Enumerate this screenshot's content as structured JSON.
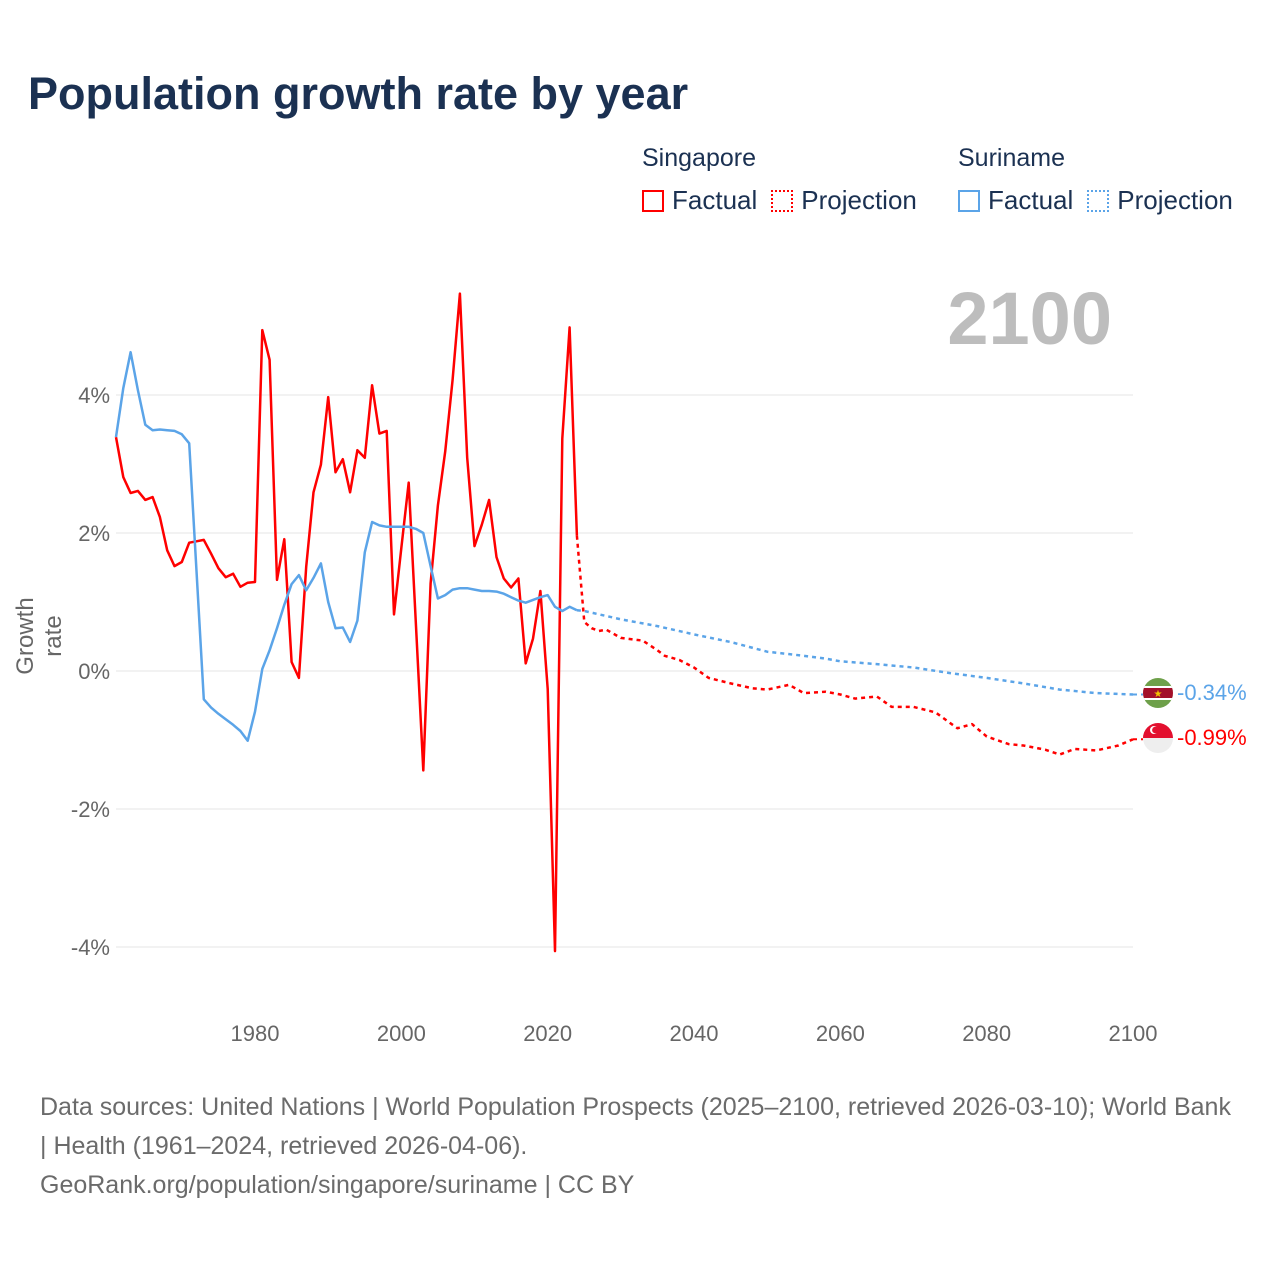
{
  "title": "Population growth rate by year",
  "current_year_label": "2100",
  "legend": {
    "groups": [
      {
        "country": "Singapore",
        "color": "#ff0000",
        "factual": "Factual",
        "projection": "Projection"
      },
      {
        "country": "Suriname",
        "color": "#5ba4e8",
        "factual": "Factual",
        "projection": "Projection"
      }
    ]
  },
  "end_labels": {
    "suriname": "-0.34%",
    "singapore": "-0.99%"
  },
  "footer": {
    "sources": "Data sources: United Nations | World Population Prospects (2025–2100, retrieved 2026-03-10); World Bank | Health (1961–2024, retrieved 2026-04-06).",
    "credit": "GeoRank.org/population/singapore/suriname | CC BY"
  },
  "chart_data": {
    "type": "line",
    "title": "Population growth rate by year",
    "xlabel": "",
    "ylabel": "Growth rate",
    "xlim": [
      1961,
      2100
    ],
    "ylim": [
      -4.8,
      5.6
    ],
    "grid": true,
    "x_ticks": [
      "1980",
      "2000",
      "2020",
      "2040",
      "2060",
      "2080",
      "2100"
    ],
    "x_tick_values": [
      1980,
      2000,
      2020,
      2040,
      2060,
      2080,
      2100
    ],
    "y_ticks": [
      "4%",
      "2%",
      "0%",
      "-2%",
      "-4%"
    ],
    "y_tick_values": [
      4,
      2,
      0,
      -2,
      -4
    ],
    "legend_position": "top-right",
    "series": [
      {
        "name": "Singapore Factual",
        "color": "#ff0000",
        "dashed": false,
        "x": [
          1961,
          1962,
          1963,
          1964,
          1965,
          1966,
          1967,
          1968,
          1969,
          1970,
          1971,
          1972,
          1973,
          1974,
          1975,
          1976,
          1977,
          1978,
          1979,
          1980,
          1981,
          1982,
          1983,
          1984,
          1985,
          1986,
          1987,
          1988,
          1989,
          1990,
          1991,
          1992,
          1993,
          1994,
          1995,
          1996,
          1997,
          1998,
          1999,
          2000,
          2001,
          2002,
          2003,
          2004,
          2005,
          2006,
          2007,
          2008,
          2009,
          2010,
          2011,
          2012,
          2013,
          2014,
          2015,
          2016,
          2017,
          2018,
          2019,
          2020,
          2021,
          2022,
          2023,
          2024
        ],
        "y": [
          3.39,
          2.81,
          2.58,
          2.61,
          2.48,
          2.52,
          2.23,
          1.75,
          1.52,
          1.58,
          1.86,
          1.88,
          1.9,
          1.7,
          1.49,
          1.36,
          1.41,
          1.22,
          1.28,
          1.29,
          4.94,
          4.51,
          1.32,
          1.91,
          0.13,
          -0.1,
          1.51,
          2.59,
          2.99,
          3.97,
          2.88,
          3.07,
          2.59,
          3.2,
          3.09,
          4.14,
          3.44,
          3.48,
          0.82,
          1.78,
          2.73,
          0.65,
          -1.44,
          1.27,
          2.4,
          3.18,
          4.22,
          5.47,
          3.09,
          1.81,
          2.12,
          2.48,
          1.65,
          1.34,
          1.21,
          1.34,
          0.11,
          0.47,
          1.16,
          -0.26,
          -4.06,
          3.37,
          4.98,
          1.96
        ]
      },
      {
        "name": "Singapore Projection",
        "color": "#ff0000",
        "dashed": true,
        "x": [
          2024,
          2025,
          2026,
          2027,
          2028,
          2030,
          2033,
          2035,
          2036,
          2038,
          2040,
          2042,
          2045,
          2048,
          2050,
          2053,
          2055,
          2058,
          2060,
          2062,
          2065,
          2067,
          2070,
          2073,
          2076,
          2078,
          2080,
          2083,
          2085,
          2088,
          2090,
          2092,
          2095,
          2098,
          2100
        ],
        "y": [
          1.96,
          0.71,
          0.62,
          0.58,
          0.6,
          0.48,
          0.44,
          0.3,
          0.22,
          0.16,
          0.05,
          -0.1,
          -0.18,
          -0.25,
          -0.27,
          -0.2,
          -0.32,
          -0.3,
          -0.34,
          -0.4,
          -0.37,
          -0.52,
          -0.52,
          -0.6,
          -0.83,
          -0.77,
          -0.95,
          -1.06,
          -1.08,
          -1.14,
          -1.21,
          -1.13,
          -1.15,
          -1.08,
          -0.99
        ]
      },
      {
        "name": "Suriname Factual",
        "color": "#5ba4e8",
        "dashed": false,
        "x": [
          1961,
          1962,
          1963,
          1964,
          1965,
          1966,
          1967,
          1968,
          1969,
          1970,
          1971,
          1972,
          1973,
          1974,
          1975,
          1976,
          1977,
          1978,
          1979,
          1980,
          1981,
          1982,
          1983,
          1984,
          1985,
          1986,
          1987,
          1988,
          1989,
          1990,
          1991,
          1992,
          1993,
          1994,
          1995,
          1996,
          1997,
          1998,
          1999,
          2000,
          2001,
          2002,
          2003,
          2004,
          2005,
          2006,
          2007,
          2008,
          2009,
          2010,
          2011,
          2012,
          2013,
          2014,
          2015,
          2016,
          2017,
          2018,
          2019,
          2020,
          2021,
          2022,
          2023,
          2024
        ],
        "y": [
          3.39,
          4.1,
          4.62,
          4.07,
          3.57,
          3.49,
          3.5,
          3.49,
          3.48,
          3.43,
          3.3,
          1.45,
          -0.41,
          -0.53,
          -0.62,
          -0.7,
          -0.78,
          -0.87,
          -1.01,
          -0.59,
          0.03,
          0.3,
          0.62,
          0.96,
          1.26,
          1.39,
          1.17,
          1.35,
          1.56,
          1.0,
          0.62,
          0.63,
          0.42,
          0.73,
          1.72,
          2.16,
          2.11,
          2.09,
          2.09,
          2.09,
          2.09,
          2.06,
          2.0,
          1.52,
          1.05,
          1.1,
          1.18,
          1.2,
          1.2,
          1.18,
          1.16,
          1.16,
          1.15,
          1.12,
          1.07,
          1.02,
          0.99,
          1.03,
          1.07,
          1.1,
          0.93,
          0.87,
          0.93,
          0.88
        ]
      },
      {
        "name": "Suriname Projection",
        "color": "#5ba4e8",
        "dashed": true,
        "x": [
          2024,
          2025,
          2030,
          2035,
          2040,
          2045,
          2050,
          2055,
          2058,
          2060,
          2065,
          2070,
          2075,
          2080,
          2085,
          2090,
          2095,
          2100
        ],
        "y": [
          0.88,
          0.87,
          0.75,
          0.65,
          0.53,
          0.42,
          0.28,
          0.22,
          0.18,
          0.14,
          0.1,
          0.05,
          -0.03,
          -0.1,
          -0.18,
          -0.27,
          -0.32,
          -0.34
        ]
      }
    ]
  }
}
